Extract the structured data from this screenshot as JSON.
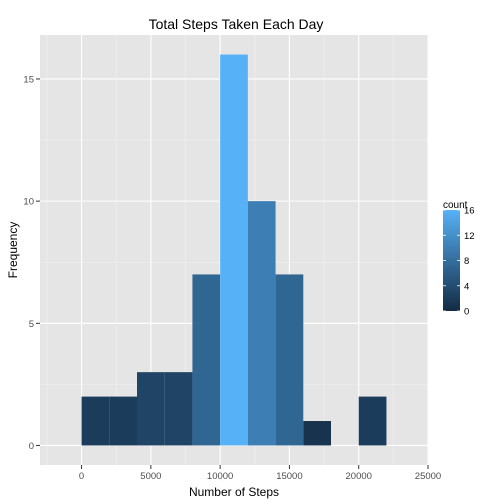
{
  "chart_data": {
    "type": "bar",
    "title": "Total Steps Taken Each Day",
    "xlabel": "Number of Steps",
    "ylabel": "Frequency",
    "xlim": [
      -3000,
      25000
    ],
    "ylim": [
      -0.8,
      16.8
    ],
    "x_ticks": [
      0,
      5000,
      10000,
      15000,
      20000,
      25000
    ],
    "x_tick_labels": [
      "0",
      "5000",
      "10000",
      "15000",
      "20000",
      "25000"
    ],
    "y_ticks": [
      0,
      5,
      10,
      15
    ],
    "y_tick_labels": [
      "0",
      "5",
      "10",
      "15"
    ],
    "bin_width": 2000,
    "bins": [
      {
        "start": 0,
        "end": 2000,
        "count": 2
      },
      {
        "start": 2000,
        "end": 4000,
        "count": 2
      },
      {
        "start": 4000,
        "end": 6000,
        "count": 3
      },
      {
        "start": 6000,
        "end": 8000,
        "count": 3
      },
      {
        "start": 8000,
        "end": 10000,
        "count": 7
      },
      {
        "start": 10000,
        "end": 12000,
        "count": 16
      },
      {
        "start": 12000,
        "end": 14000,
        "count": 10
      },
      {
        "start": 14000,
        "end": 16000,
        "count": 7
      },
      {
        "start": 16000,
        "end": 18000,
        "count": 1
      },
      {
        "start": 18000,
        "end": 20000,
        "count": 0
      },
      {
        "start": 20000,
        "end": 22000,
        "count": 2
      }
    ],
    "grid": true,
    "legend": {
      "title": "count",
      "placement": "right",
      "ticks": [
        16,
        12,
        8,
        4,
        0
      ],
      "tick_labels": [
        "16",
        "12",
        "8",
        "4",
        "0"
      ],
      "color_low": "#132B43",
      "color_high": "#56B1F7"
    },
    "colors": {
      "panel_background": "#E5E5E5",
      "grid_major": "#FFFFFF",
      "grid_minor": "#F2F2F2",
      "tick_label": "#4D4D4D"
    }
  }
}
